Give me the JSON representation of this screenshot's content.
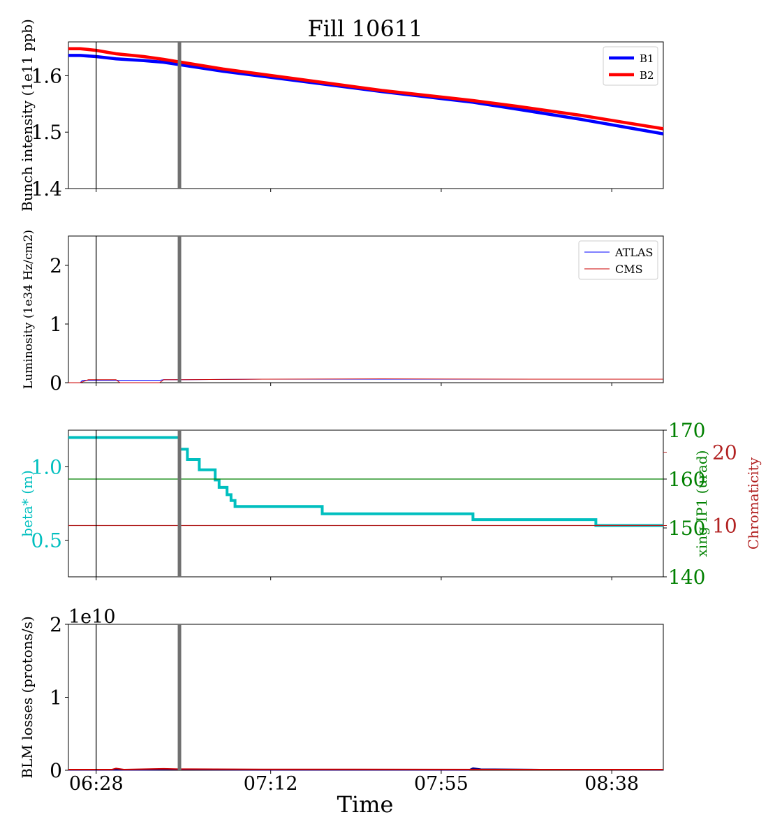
{
  "figure": {
    "title": "Fill 10611",
    "xlabel": "Time",
    "x_ticks": [
      "06:28",
      "07:12",
      "07:55",
      "08:38"
    ],
    "x_tick_minutes": [
      388,
      432,
      475,
      518
    ],
    "x_range_minutes": [
      381,
      531
    ],
    "marker_lines": [
      {
        "x_minutes": 388,
        "color": "#000000",
        "style": "thin"
      },
      {
        "x_minutes": 409,
        "color": "#707070",
        "style": "thick"
      }
    ]
  },
  "chart_data": [
    {
      "type": "line",
      "id": "intensity",
      "ylabel": "Bunch intensity (1e11 ppb)",
      "ylim": [
        1.4,
        1.66
      ],
      "yticks": [
        1.4,
        1.5,
        1.6
      ],
      "ytick_labels": [
        "1.4",
        "1.5",
        "1.6"
      ],
      "legend_position": "top-right",
      "series": [
        {
          "name": "B1",
          "color": "#0000ff",
          "x": [
            381,
            384,
            388,
            393,
            400,
            405,
            420,
            440,
            460,
            483,
            494,
            510,
            531
          ],
          "y": [
            1.636,
            1.636,
            1.634,
            1.63,
            1.627,
            1.624,
            1.608,
            1.59,
            1.572,
            1.553,
            1.541,
            1.523,
            1.497
          ]
        },
        {
          "name": "B2",
          "color": "#ff0000",
          "x": [
            381,
            384,
            388,
            393,
            400,
            405,
            420,
            440,
            460,
            483,
            494,
            510,
            531
          ],
          "y": [
            1.648,
            1.648,
            1.645,
            1.639,
            1.634,
            1.629,
            1.612,
            1.593,
            1.574,
            1.556,
            1.546,
            1.53,
            1.506
          ]
        }
      ]
    },
    {
      "type": "line",
      "id": "luminosity",
      "ylabel": "Luminosity (1e34 Hz/cm2)",
      "ylim": [
        0,
        2.5
      ],
      "yticks": [
        0,
        1,
        2
      ],
      "ytick_labels": [
        "0",
        "1",
        "2"
      ],
      "legend_position": "top-right",
      "series": [
        {
          "name": "ATLAS",
          "color": "#0000ff",
          "x": [
            381,
            384,
            384.5,
            395,
            397,
            404,
            405,
            410,
            420,
            430,
            460,
            500,
            531
          ],
          "y": [
            0,
            0,
            0.04,
            0.04,
            0.04,
            0.04,
            0.05,
            0.05,
            0.055,
            0.06,
            0.06,
            0.06,
            0.06
          ]
        },
        {
          "name": "CMS",
          "color": "#cc0000",
          "x": [
            381,
            384,
            386,
            393,
            394,
            404,
            405,
            410,
            420,
            430,
            460,
            500,
            531
          ],
          "y": [
            0,
            0,
            0.05,
            0.05,
            0.0,
            0.0,
            0.05,
            0.05,
            0.055,
            0.06,
            0.065,
            0.06,
            0.06
          ]
        }
      ]
    },
    {
      "type": "line",
      "id": "optics",
      "ylabel": "beta* (m)",
      "ylabel_color": "#00bfbf",
      "ylim": [
        0.25,
        1.25
      ],
      "yticks": [
        0.5,
        1.0
      ],
      "ytick_labels": [
        "0.5",
        "1.0"
      ],
      "y2": {
        "label": "xing IP1 (urad)",
        "color": "#008000",
        "ylim": [
          140,
          170
        ],
        "yticks": [
          140,
          150,
          160,
          170
        ],
        "ytick_labels": [
          "140",
          "150",
          "160",
          "170"
        ]
      },
      "y3": {
        "label": "Chromaticity",
        "color": "#b22222",
        "ylim": [
          3,
          23
        ],
        "yticks": [
          10,
          20
        ],
        "ytick_labels": [
          "10",
          "20"
        ]
      },
      "series": [
        {
          "name": "beta*",
          "color": "#00bfbf",
          "axis": "y",
          "x": [
            381,
            409,
            409,
            411,
            411,
            414,
            414,
            418,
            418,
            419,
            419,
            421,
            421,
            422,
            422,
            423,
            423,
            445,
            445,
            483,
            483,
            514,
            514,
            531
          ],
          "y": [
            1.2,
            1.2,
            1.12,
            1.12,
            1.05,
            1.05,
            0.98,
            0.98,
            0.91,
            0.91,
            0.86,
            0.86,
            0.81,
            0.81,
            0.77,
            0.77,
            0.73,
            0.73,
            0.68,
            0.68,
            0.64,
            0.64,
            0.6,
            0.6
          ]
        },
        {
          "name": "xing IP1",
          "color": "#008000",
          "axis": "y2",
          "x": [
            381,
            531
          ],
          "y": [
            160,
            160
          ]
        },
        {
          "name": "Chromaticity",
          "color": "#b22222",
          "axis": "y3",
          "x": [
            381,
            531
          ],
          "y": [
            10,
            10
          ]
        }
      ]
    },
    {
      "type": "line",
      "id": "losses",
      "ylabel": "BLM losses (protons/s)",
      "offset_label": "1e10",
      "ylim": [
        0,
        2.0
      ],
      "yticks": [
        0,
        1,
        2
      ],
      "ytick_labels": [
        "0",
        "1",
        "2"
      ],
      "series": [
        {
          "name": "B1",
          "color": "#00008b",
          "x": [
            381,
            400,
            409,
            430,
            482,
            483,
            485,
            500,
            531
          ],
          "y": [
            0.005,
            0.005,
            0.01,
            0.005,
            0.005,
            0.03,
            0.015,
            0.01,
            0.008
          ]
        },
        {
          "name": "B2",
          "color": "#cc0000",
          "x": [
            381,
            392,
            393,
            395,
            405,
            409,
            412,
            430,
            500,
            531
          ],
          "y": [
            0.01,
            0.01,
            0.025,
            0.01,
            0.02,
            0.015,
            0.015,
            0.012,
            0.01,
            0.01
          ]
        }
      ]
    }
  ]
}
